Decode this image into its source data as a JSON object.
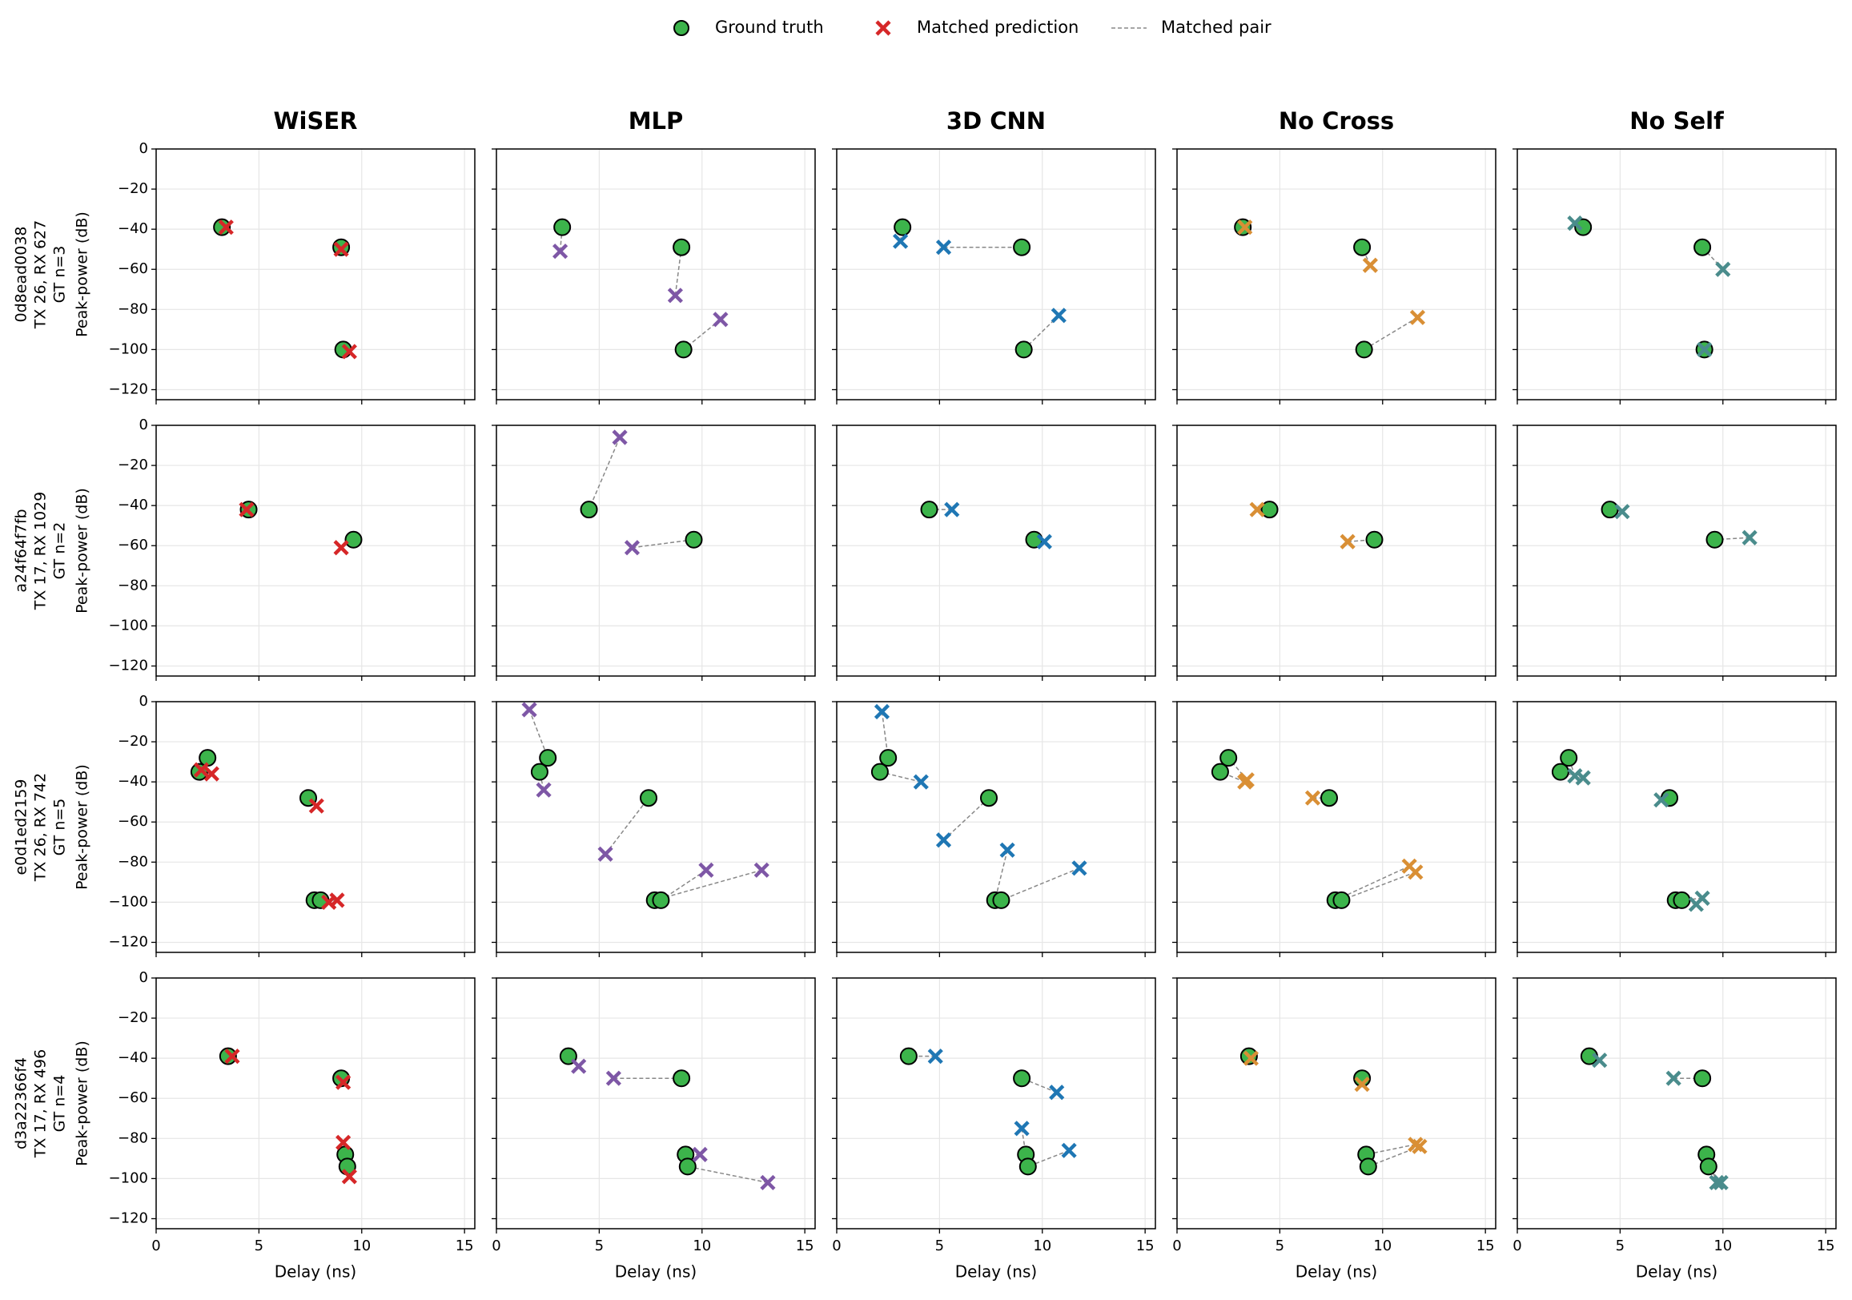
{
  "chart_data": {
    "type": "scatter_grid",
    "legend": [
      {
        "name": "Ground truth",
        "color": "#3cb44b"
      },
      {
        "name": "Matched prediction",
        "color": "#d62728"
      },
      {
        "name": "Matched pair",
        "color": "#888888"
      }
    ],
    "xlabel": "Delay (ns)",
    "ylabel": "Peak-power (dB)",
    "xlim": [
      0,
      15.5
    ],
    "xticks": [
      0,
      5,
      10,
      15
    ],
    "ylim": [
      -125,
      0
    ],
    "yticks": [
      {
        "value": -120,
        "label": "−120"
      },
      {
        "value": -100,
        "label": "−100"
      },
      {
        "value": -80,
        "label": "−80"
      },
      {
        "value": -60,
        "label": "−60"
      },
      {
        "value": -40,
        "label": "−40"
      },
      {
        "value": -20,
        "label": "−20"
      },
      0
    ],
    "grid": true,
    "gt_color": "#3cb44b",
    "columns": [
      {
        "title": "WiSER",
        "color": "#d62728"
      },
      {
        "title": "MLP",
        "color": "#7e57a6"
      },
      {
        "title": "3D CNN",
        "color": "#1f77b4"
      },
      {
        "title": "No Cross",
        "color": "#d98f35"
      },
      {
        "title": "No Self",
        "color": "#4a8c8c"
      }
    ],
    "rows": [
      {
        "label": [
          "0d8ead0038",
          "TX 26, RX 627",
          "GT n=3"
        ],
        "gt": {
          "x": [
            3.2,
            9.0,
            9.1
          ],
          "y": [
            -39,
            -49,
            -100
          ]
        },
        "preds": [
          {
            "x": [
              3.4,
              9.0,
              9.4
            ],
            "y": [
              -39,
              -50,
              -101
            ]
          },
          {
            "x": [
              3.1,
              8.7,
              10.9
            ],
            "y": [
              -51,
              -73,
              -85
            ]
          },
          {
            "x": [
              3.1,
              5.2,
              10.8
            ],
            "y": [
              -46,
              -49,
              -83
            ]
          },
          {
            "x": [
              3.3,
              9.4,
              11.7
            ],
            "y": [
              -39,
              -58,
              -84
            ]
          },
          {
            "x": [
              2.8,
              10.0,
              9.1
            ],
            "y": [
              -37,
              -60,
              -100
            ]
          }
        ]
      },
      {
        "label": [
          "a24f64f7fb",
          "TX 17, RX 1029",
          "GT n=2"
        ],
        "gt": {
          "x": [
            4.5,
            9.6
          ],
          "y": [
            -42,
            -57
          ]
        },
        "preds": [
          {
            "x": [
              4.4,
              9.0
            ],
            "y": [
              -42,
              -61
            ]
          },
          {
            "x": [
              6.0,
              6.6
            ],
            "y": [
              -6,
              -61
            ]
          },
          {
            "x": [
              5.6,
              10.1
            ],
            "y": [
              -42,
              -58
            ]
          },
          {
            "x": [
              3.9,
              8.3
            ],
            "y": [
              -42,
              -58
            ]
          },
          {
            "x": [
              5.1,
              11.3
            ],
            "y": [
              -43,
              -56
            ]
          }
        ]
      },
      {
        "label": [
          "e0d1ed2159",
          "TX 26, RX 742",
          "GT n=5"
        ],
        "gt": {
          "x": [
            2.5,
            2.1,
            7.4,
            7.7,
            8.0
          ],
          "y": [
            -28,
            -35,
            -48,
            -99,
            -99
          ]
        },
        "preds": [
          {
            "x": [
              2.2,
              2.7,
              7.8,
              8.4,
              8.8
            ],
            "y": [
              -34,
              -36,
              -52,
              -100,
              -99
            ]
          },
          {
            "x": [
              1.6,
              2.3,
              5.3,
              12.9,
              10.2
            ],
            "y": [
              -4,
              -44,
              -76,
              -84,
              -84
            ]
          },
          {
            "x": [
              2.2,
              4.1,
              5.2,
              8.3,
              11.8
            ],
            "y": [
              -5,
              -40,
              -69,
              -74,
              -83
            ]
          },
          {
            "x": [
              3.4,
              3.3,
              6.6,
              11.3,
              11.6
            ],
            "y": [
              -39,
              -40,
              -48,
              -82,
              -85
            ]
          },
          {
            "x": [
              2.8,
              3.2,
              7.0,
              8.7,
              9.0
            ],
            "y": [
              -37,
              -38,
              -49,
              -101,
              -98
            ]
          }
        ]
      },
      {
        "label": [
          "d3a22366f4",
          "TX 17, RX 496",
          "GT n=4"
        ],
        "gt": {
          "x": [
            3.5,
            9.0,
            9.2,
            9.3
          ],
          "y": [
            -39,
            -50,
            -88,
            -94
          ]
        },
        "preds": [
          {
            "x": [
              3.7,
              9.1,
              9.1,
              9.4
            ],
            "y": [
              -39,
              -52,
              -82,
              -99
            ]
          },
          {
            "x": [
              4.0,
              5.7,
              9.9,
              13.2
            ],
            "y": [
              -44,
              -50,
              -88,
              -102
            ]
          },
          {
            "x": [
              4.8,
              10.7,
              9.0,
              11.3
            ],
            "y": [
              -39,
              -57,
              -75,
              -86
            ]
          },
          {
            "x": [
              3.6,
              9.0,
              11.6,
              11.8
            ],
            "y": [
              -40,
              -53,
              -83,
              -84
            ]
          },
          {
            "x": [
              4.0,
              7.6,
              9.7,
              9.9
            ],
            "y": [
              -41,
              -50,
              -102,
              -102
            ]
          }
        ]
      }
    ]
  }
}
